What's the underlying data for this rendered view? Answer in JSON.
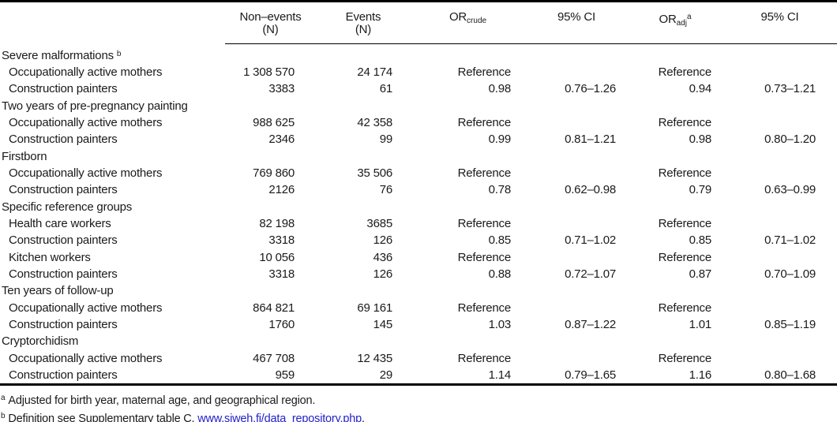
{
  "colors": {
    "text": "#1a1a1a",
    "rule": "#000000",
    "link": "#2222cc"
  },
  "table": {
    "headers": {
      "non_events_line1": "Non–events",
      "non_events_line2": "(N)",
      "events_line1": "Events",
      "events_line2": "(N)",
      "or_crude_base": "OR",
      "or_crude_sub": "crude",
      "ci_crude": "95% CI",
      "or_adj_base": "OR",
      "or_adj_sub": "adj",
      "or_adj_sup": "a",
      "ci_adj": "95% CI"
    },
    "rows": [
      {
        "type": "section",
        "label": "Severe malformations",
        "marker": "b"
      },
      {
        "type": "data",
        "label": "Occupationally active mothers",
        "non_events": "1 308 570",
        "events": "24 174",
        "or_crude": "Reference",
        "ci_crude": "",
        "or_adj": "Reference",
        "ci_adj": ""
      },
      {
        "type": "data",
        "label": "Construction painters",
        "non_events": "3383",
        "events": "61",
        "or_crude": "0.98",
        "ci_crude": "0.76–1.26",
        "or_adj": "0.94",
        "ci_adj": "0.73–1.21"
      },
      {
        "type": "section",
        "label": "Two years of pre-pregnancy painting"
      },
      {
        "type": "data",
        "label": "Occupationally active mothers",
        "non_events": "988 625",
        "events": "42 358",
        "or_crude": "Reference",
        "ci_crude": "",
        "or_adj": "Reference",
        "ci_adj": ""
      },
      {
        "type": "data",
        "label": "Construction painters",
        "non_events": "2346",
        "events": "99",
        "or_crude": "0.99",
        "ci_crude": "0.81–1.21",
        "or_adj": "0.98",
        "ci_adj": "0.80–1.20"
      },
      {
        "type": "section",
        "label": "Firstborn"
      },
      {
        "type": "data",
        "label": "Occupationally active mothers",
        "non_events": "769 860",
        "events": "35 506",
        "or_crude": "Reference",
        "ci_crude": "",
        "or_adj": "Reference",
        "ci_adj": ""
      },
      {
        "type": "data",
        "label": "Construction painters",
        "non_events": "2126",
        "events": "76",
        "or_crude": "0.78",
        "ci_crude": "0.62–0.98",
        "or_adj": "0.79",
        "ci_adj": "0.63–0.99"
      },
      {
        "type": "section",
        "label": "Specific reference groups"
      },
      {
        "type": "data",
        "label": "Health care workers",
        "non_events": "82 198",
        "events": "3685",
        "or_crude": "Reference",
        "ci_crude": "",
        "or_adj": "Reference",
        "ci_adj": ""
      },
      {
        "type": "data",
        "label": "Construction painters",
        "non_events": "3318",
        "events": "126",
        "or_crude": "0.85",
        "ci_crude": "0.71–1.02",
        "or_adj": "0.85",
        "ci_adj": "0.71–1.02"
      },
      {
        "type": "data",
        "label": "Kitchen workers",
        "non_events": "10 056",
        "events": "436",
        "or_crude": "Reference",
        "ci_crude": "",
        "or_adj": "Reference",
        "ci_adj": ""
      },
      {
        "type": "data",
        "label": "Construction painters",
        "non_events": "3318",
        "events": "126",
        "or_crude": "0.88",
        "ci_crude": "0.72–1.07",
        "or_adj": "0.87",
        "ci_adj": "0.70–1.09"
      },
      {
        "type": "section",
        "label": "Ten years of follow-up"
      },
      {
        "type": "data",
        "label": "Occupationally active mothers",
        "non_events": "864 821",
        "events": "69 161",
        "or_crude": "Reference",
        "ci_crude": "",
        "or_adj": "Reference",
        "ci_adj": ""
      },
      {
        "type": "data",
        "label": "Construction painters",
        "non_events": "1760",
        "events": "145",
        "or_crude": "1.03",
        "ci_crude": "0.87–1.22",
        "or_adj": "1.01",
        "ci_adj": "0.85–1.19"
      },
      {
        "type": "section",
        "label": "Cryptorchidism"
      },
      {
        "type": "data",
        "label": "Occupationally active mothers",
        "non_events": "467 708",
        "events": "12 435",
        "or_crude": "Reference",
        "ci_crude": "",
        "or_adj": "Reference",
        "ci_adj": ""
      },
      {
        "type": "data",
        "label": "Construction painters",
        "non_events": "959",
        "events": "29",
        "or_crude": "1.14",
        "ci_crude": "0.79–1.65",
        "or_adj": "1.16",
        "ci_adj": "0.80–1.68"
      }
    ]
  },
  "footnotes": {
    "a_marker": "a",
    "a_text": "Adjusted for birth year, maternal age, and geographical region.",
    "b_marker": "b",
    "b_text_before_link": "Definition see Supplementary table C, ",
    "b_link": "www.sjweh.fi/data_repository.php",
    "b_text_after_link": "."
  }
}
